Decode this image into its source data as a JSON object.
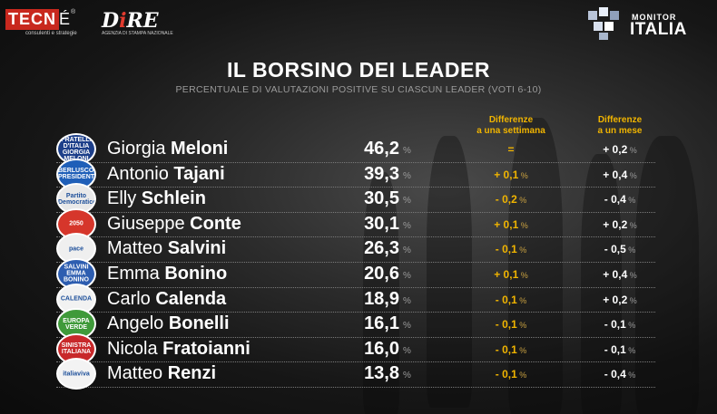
{
  "header": {
    "tecne_logo_box": "TECN",
    "tecne_logo_rest": "É",
    "tecne_reg": "®",
    "tecne_sub": "consulenti e strategie",
    "dire_logo_d": "D",
    "dire_logo_i": "i",
    "dire_logo_re": "RE",
    "dire_sub": "AGENZIA DI STAMPA NAZIONALE",
    "monitor_line1": "MONITOR",
    "monitor_line2": "ITALIA"
  },
  "title": "IL BORSINO DEI LEADER",
  "subtitle": "PERCENTUALE DI VALUTAZIONI POSITIVE SU CIASCUN LEADER (VOTI 6-10)",
  "columns": {
    "week_line1": "Differenze",
    "week_line2": "a una settimana",
    "month_line1": "Differenze",
    "month_line2": "a un mese"
  },
  "pct_symbol": "%",
  "colors": {
    "accent": "#f0b400"
  },
  "leaders": [
    {
      "first": "Giorgia",
      "last": "Meloni",
      "value": "46,2",
      "week": "=",
      "week_pct": "",
      "month": "+ 0,2",
      "month_pct": "%",
      "logo_text": "FRATELLI D'ITALIA GIORGIA MELONI",
      "logo_color": "#1d3f8a"
    },
    {
      "first": "Antonio",
      "last": "Tajani",
      "value": "39,3",
      "week": "+ 0,1",
      "week_pct": "%",
      "month": "+ 0,4",
      "month_pct": "%",
      "logo_text": "BERLUSCONI PRESIDENTE",
      "logo_color": "#1f5fb8"
    },
    {
      "first": "Elly",
      "last": "Schlein",
      "value": "30,5",
      "week": "- 0,2",
      "week_pct": "%",
      "month": "- 0,4",
      "month_pct": "%",
      "logo_text": "Partito Democratico",
      "logo_color": "#e9e9e9"
    },
    {
      "first": "Giuseppe",
      "last": "Conte",
      "value": "30,1",
      "week": "+ 0,1",
      "week_pct": "%",
      "month": "+ 0,2",
      "month_pct": "%",
      "logo_text": "2050",
      "logo_color": "#d6362b"
    },
    {
      "first": "Matteo",
      "last": "Salvini",
      "value": "26,3",
      "week": "- 0,1",
      "week_pct": "%",
      "month": "- 0,5",
      "month_pct": "%",
      "logo_text": "pace",
      "logo_color": "#efefef"
    },
    {
      "first": "Emma",
      "last": "Bonino",
      "value": "20,6",
      "week": "+ 0,1",
      "week_pct": "%",
      "month": "+ 0,4",
      "month_pct": "%",
      "logo_text": "SALVINI EMMA BONINO",
      "logo_color": "#2d5db0"
    },
    {
      "first": "Carlo",
      "last": "Calenda",
      "value": "18,9",
      "week": "- 0,1",
      "week_pct": "%",
      "month": "+ 0,2",
      "month_pct": "%",
      "logo_text": "CALENDA",
      "logo_color": "#f2f2f2"
    },
    {
      "first": "Angelo",
      "last": "Bonelli",
      "value": "16,1",
      "week": "- 0,1",
      "week_pct": "%",
      "month": "- 0,1",
      "month_pct": "%",
      "logo_text": "EUROPA VERDE",
      "logo_color": "#3f9a3a"
    },
    {
      "first": "Nicola",
      "last": "Fratoianni",
      "value": "16,0",
      "week": "- 0,1",
      "week_pct": "%",
      "month": "- 0,1",
      "month_pct": "%",
      "logo_text": "SINISTRA ITALIANA",
      "logo_color": "#c8282a"
    },
    {
      "first": "Matteo",
      "last": "Renzi",
      "value": "13,8",
      "week": "- 0,1",
      "week_pct": "%",
      "month": "- 0,4",
      "month_pct": "%",
      "logo_text": "italiaviva",
      "logo_color": "#f3f3f3"
    }
  ]
}
